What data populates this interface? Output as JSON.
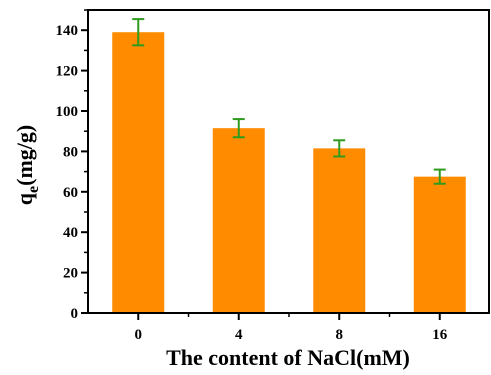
{
  "chart_data": {
    "type": "bar",
    "categories": [
      "0",
      "4",
      "8",
      "16"
    ],
    "values": [
      139,
      91.5,
      81.5,
      67.5
    ],
    "errors": [
      6.5,
      4.5,
      4,
      3.5
    ],
    "xlabel": "The content of NaCl(mM)",
    "ylabel_main": "q",
    "ylabel_sub": "e",
    "ylabel_unit": "(mg/g)",
    "ylim": [
      0,
      150
    ],
    "yticks": [
      "0",
      "20",
      "40",
      "60",
      "80",
      "100",
      "120",
      "140"
    ],
    "ytick_values": [
      0,
      20,
      40,
      60,
      80,
      100,
      120,
      140
    ],
    "bar_color": "#ff8c00",
    "error_color": "#2e9a1e",
    "grid": false
  }
}
